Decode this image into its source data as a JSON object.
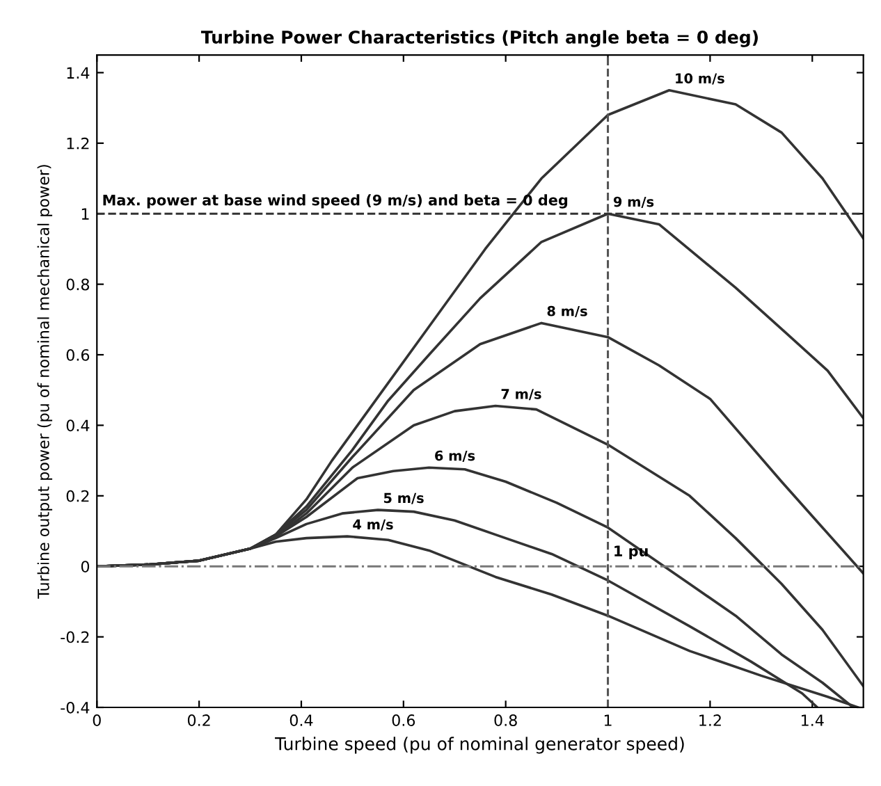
{
  "chart_data": {
    "type": "line",
    "title": "Turbine Power Characteristics (Pitch angle beta = 0 deg)",
    "xlabel": "Turbine speed (pu of nominal generator speed)",
    "ylabel": "Turbine output power (pu of nominal mechanical power)",
    "xlim": [
      0,
      1.5
    ],
    "ylim": [
      -0.4,
      1.45
    ],
    "xticks": [
      0,
      0.2,
      0.4,
      0.6,
      0.8,
      1,
      1.2,
      1.4
    ],
    "yticks": [
      -0.4,
      -0.2,
      0,
      0.2,
      0.4,
      0.6,
      0.8,
      1,
      1.2,
      1.4
    ],
    "grid": false,
    "legend": false,
    "line_style": "solid",
    "marker": "none",
    "series": [
      {
        "name": "4 m/s",
        "color": "#333333",
        "x": [
          0,
          0.1,
          0.2,
          0.3,
          0.35,
          0.41,
          0.49,
          0.57,
          0.65,
          0.78,
          0.89,
          1.0,
          1.16,
          1.3,
          1.43,
          1.49
        ],
        "values": [
          0,
          0.005,
          0.016,
          0.05,
          0.07,
          0.08,
          0.085,
          0.075,
          0.045,
          -0.03,
          -0.08,
          -0.14,
          -0.24,
          -0.31,
          -0.37,
          -0.4
        ]
      },
      {
        "name": "5 m/s",
        "color": "#333333",
        "x": [
          0,
          0.1,
          0.2,
          0.3,
          0.35,
          0.41,
          0.48,
          0.55,
          0.62,
          0.7,
          0.78,
          0.89,
          1.0,
          1.16,
          1.28,
          1.38,
          1.41
        ],
        "values": [
          0,
          0.005,
          0.016,
          0.05,
          0.08,
          0.12,
          0.15,
          0.16,
          0.155,
          0.13,
          0.09,
          0.035,
          -0.04,
          -0.17,
          -0.27,
          -0.36,
          -0.4
        ]
      },
      {
        "name": "6 m/s",
        "color": "#333333",
        "x": [
          0,
          0.1,
          0.2,
          0.3,
          0.35,
          0.41,
          0.51,
          0.58,
          0.65,
          0.72,
          0.8,
          0.9,
          1.0,
          1.16,
          1.25,
          1.34,
          1.42,
          1.48
        ],
        "values": [
          0,
          0.005,
          0.016,
          0.05,
          0.085,
          0.14,
          0.25,
          0.27,
          0.28,
          0.275,
          0.24,
          0.18,
          0.11,
          -0.05,
          -0.14,
          -0.25,
          -0.33,
          -0.4
        ]
      },
      {
        "name": "7 m/s",
        "color": "#333333",
        "x": [
          0,
          0.1,
          0.2,
          0.3,
          0.35,
          0.41,
          0.5,
          0.62,
          0.7,
          0.78,
          0.86,
          1.0,
          1.16,
          1.25,
          1.34,
          1.42,
          1.5
        ],
        "values": [
          0,
          0.005,
          0.016,
          0.05,
          0.085,
          0.15,
          0.28,
          0.4,
          0.44,
          0.455,
          0.445,
          0.345,
          0.2,
          0.08,
          -0.05,
          -0.18,
          -0.34
        ]
      },
      {
        "name": "8 m/s",
        "color": "#333333",
        "x": [
          0,
          0.1,
          0.2,
          0.3,
          0.35,
          0.41,
          0.5,
          0.62,
          0.75,
          0.87,
          1.0,
          1.1,
          1.2,
          1.34,
          1.42,
          1.5
        ],
        "values": [
          0,
          0.005,
          0.016,
          0.05,
          0.09,
          0.16,
          0.31,
          0.5,
          0.63,
          0.69,
          0.65,
          0.57,
          0.475,
          0.24,
          0.11,
          -0.02
        ]
      },
      {
        "name": "9 m/s",
        "color": "#333333",
        "x": [
          0,
          0.1,
          0.2,
          0.3,
          0.35,
          0.41,
          0.5,
          0.57,
          0.65,
          0.75,
          0.87,
          1.0,
          1.1,
          1.25,
          1.35,
          1.43,
          1.5
        ],
        "values": [
          0,
          0.005,
          0.016,
          0.05,
          0.09,
          0.17,
          0.33,
          0.47,
          0.6,
          0.76,
          0.92,
          1.0,
          0.97,
          0.79,
          0.66,
          0.555,
          0.42
        ]
      },
      {
        "name": "10 m/s",
        "color": "#333333",
        "x": [
          0,
          0.1,
          0.2,
          0.3,
          0.35,
          0.41,
          0.46,
          0.55,
          0.65,
          0.76,
          0.87,
          1.0,
          1.12,
          1.25,
          1.34,
          1.42,
          1.5
        ],
        "values": [
          0,
          0.005,
          0.016,
          0.05,
          0.09,
          0.19,
          0.3,
          0.48,
          0.68,
          0.9,
          1.1,
          1.28,
          1.35,
          1.31,
          1.23,
          1.1,
          0.93
        ]
      }
    ],
    "annotations": [
      {
        "text": "Max. power at base wind speed (9 m/s) and beta = 0 deg",
        "x": 0,
        "y": 1
      }
    ],
    "ref_lines": [
      {
        "axis": "y",
        "value": 1,
        "color": "#333333",
        "line_style": "dashed"
      },
      {
        "axis": "x",
        "value": 1,
        "label": "1 pu",
        "color": "#555555",
        "line_style": "dashed"
      },
      {
        "axis": "y",
        "value": 0,
        "color": "#777777",
        "line_style": "dashdot"
      }
    ]
  }
}
